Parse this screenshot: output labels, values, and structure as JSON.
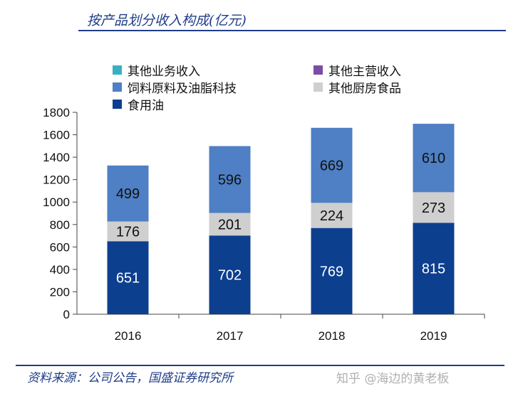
{
  "title": "按产品划分收入构成(亿元)",
  "source": "资料来源：公司公告，国盛证券研究所",
  "watermark": "知乎 @海边的黄老板",
  "chart_data": {
    "type": "bar",
    "stacked": true,
    "categories": [
      "2016",
      "2017",
      "2018",
      "2019"
    ],
    "ylim": [
      0,
      1800
    ],
    "yticks": [
      0,
      200,
      400,
      600,
      800,
      1000,
      1200,
      1400,
      1600,
      1800
    ],
    "legend_position": "top",
    "series": [
      {
        "name": "食用油",
        "color": "#0d3f8f",
        "values": [
          651,
          702,
          769,
          815
        ]
      },
      {
        "name": "其他厨房食品",
        "color": "#cfcfcf",
        "values": [
          176,
          201,
          224,
          273
        ]
      },
      {
        "name": "饲料原料及油脂科技",
        "color": "#4f7fc4",
        "values": [
          499,
          596,
          669,
          610
        ]
      },
      {
        "name": "其他主营收入",
        "color": "#7a4fa3",
        "values": [
          0,
          0,
          0,
          0
        ]
      },
      {
        "name": "其他业务收入",
        "color": "#39b0c2",
        "values": [
          0,
          0,
          0,
          0
        ]
      }
    ]
  }
}
